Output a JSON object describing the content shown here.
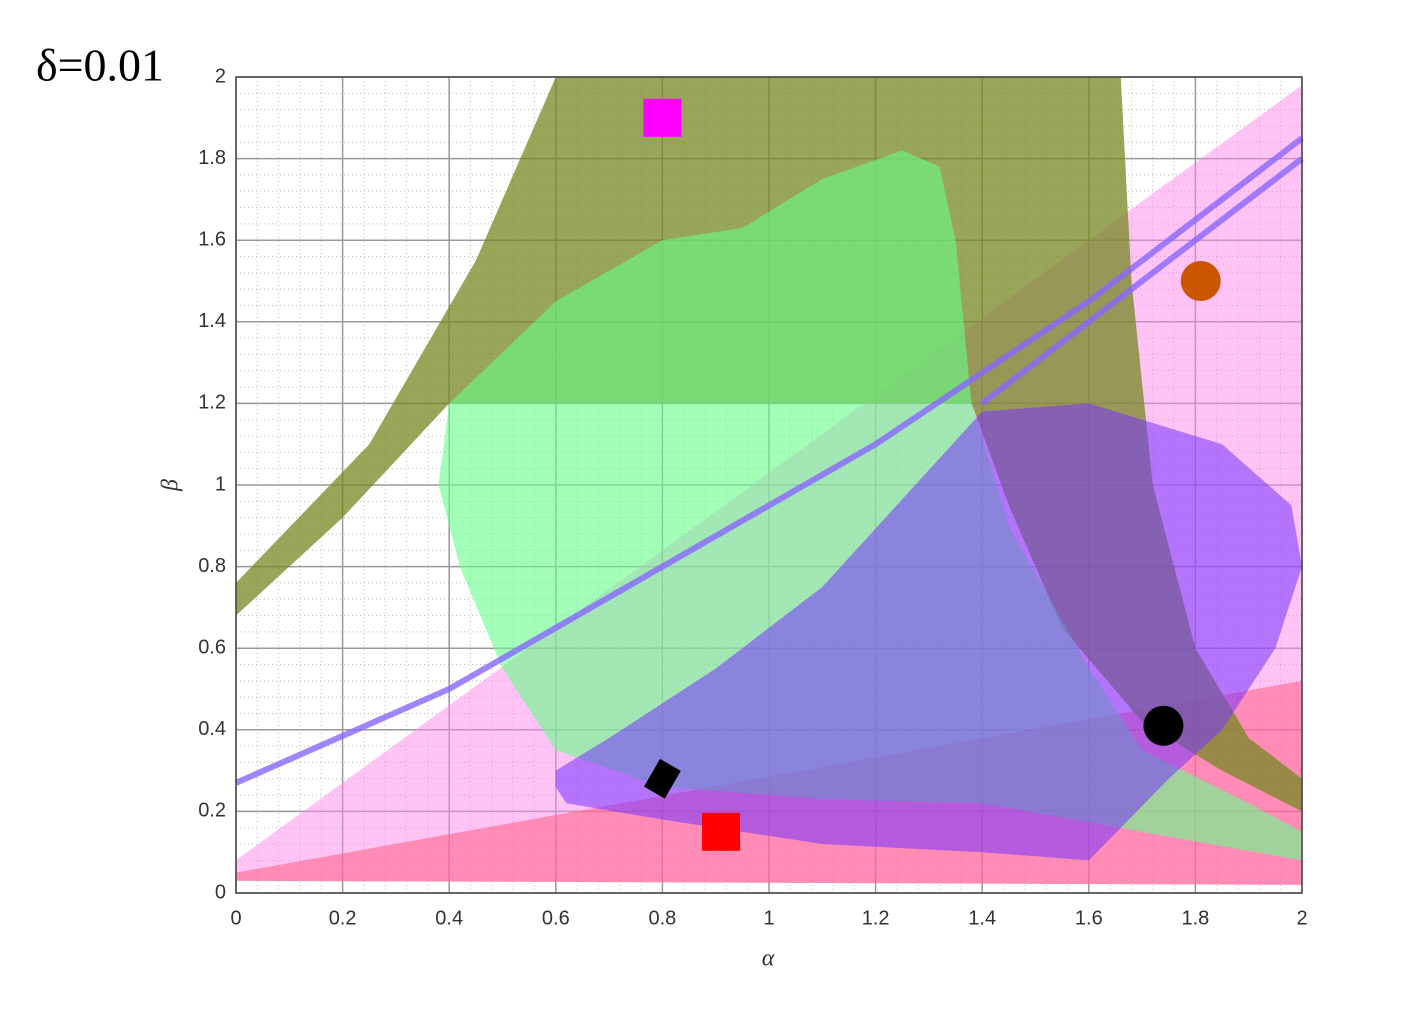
{
  "chart_data": {
    "type": "region",
    "title": "δ=0.01",
    "xlabel": "α",
    "ylabel": "β",
    "xlim": [
      0,
      2
    ],
    "ylim": [
      0,
      2
    ],
    "xticks": [
      0,
      0.2,
      0.4,
      0.6,
      0.8,
      1,
      1.2,
      1.4,
      1.6,
      1.8,
      2
    ],
    "yticks": [
      0,
      0.2,
      0.4,
      0.6,
      0.8,
      1,
      1.2,
      1.4,
      1.6,
      1.8,
      2
    ],
    "grid": true,
    "regions": [
      {
        "color": "#ff88ee",
        "opacity": 0.5,
        "x": [
          0,
          0,
          2,
          2
        ],
        "values": [
          0.03,
          0.08,
          1.98,
          0.02
        ]
      },
      {
        "color": "#ff5577",
        "opacity": 0.5,
        "x": [
          0,
          0,
          2,
          2
        ],
        "values": [
          0.03,
          0.05,
          0.52,
          0.02
        ]
      },
      {
        "color": "#778822",
        "opacity": 0.75,
        "x": [
          0,
          0,
          0.25,
          0.45,
          0.6,
          1.66,
          1.68,
          1.72,
          1.8,
          1.9,
          2,
          2,
          1.85,
          1.7,
          1.55,
          1.45,
          1.38,
          0.4,
          0.2
        ],
        "values": [
          0.68,
          0.76,
          1.1,
          1.55,
          2,
          2,
          1.5,
          1.0,
          0.6,
          0.38,
          0.28,
          0.2,
          0.3,
          0.42,
          0.65,
          0.95,
          1.2,
          1.2,
          0.92
        ]
      },
      {
        "color": "#66ff88",
        "opacity": 0.6,
        "x": [
          0.38,
          0.4,
          0.6,
          0.8,
          0.95,
          1.1,
          1.25,
          1.32,
          1.35,
          1.38,
          1.45,
          1.6,
          1.7,
          1.9,
          2,
          2,
          1.7,
          1.4,
          1.1,
          0.8,
          0.6,
          0.5,
          0.42
        ],
        "values": [
          1.0,
          1.2,
          1.45,
          1.6,
          1.63,
          1.75,
          1.82,
          1.78,
          1.6,
          1.2,
          0.9,
          0.55,
          0.35,
          0.22,
          0.15,
          0.08,
          0.15,
          0.22,
          0.23,
          0.26,
          0.35,
          0.55,
          0.8
        ]
      },
      {
        "color": "#7733ff",
        "opacity": 0.55,
        "x": [
          0.6,
          0.7,
          0.9,
          1.1,
          1.4,
          1.6,
          1.85,
          1.98,
          2,
          1.95,
          1.85,
          1.75,
          1.6,
          1.4,
          1.1,
          0.8,
          0.62,
          0.6
        ],
        "values": [
          0.3,
          0.38,
          0.55,
          0.75,
          1.18,
          1.2,
          1.1,
          0.95,
          0.8,
          0.6,
          0.4,
          0.28,
          0.08,
          0.1,
          0.12,
          0.18,
          0.22,
          0.26
        ]
      }
    ],
    "lines": [
      {
        "color": "#8866ff",
        "x": [
          0,
          0.4,
          0.8,
          1.2,
          1.6,
          2
        ],
        "values": [
          0.27,
          0.5,
          0.8,
          1.1,
          1.45,
          1.85
        ]
      },
      {
        "color": "#8866ff",
        "x": [
          1.4,
          1.7,
          2
        ],
        "values": [
          1.2,
          1.5,
          1.8
        ]
      }
    ],
    "markers": [
      {
        "marker": "square",
        "color": "#ff00ff",
        "x": [
          0.8
        ],
        "values": [
          1.9
        ]
      },
      {
        "marker": "circle",
        "color": "#cc5500",
        "x": [
          1.81
        ],
        "values": [
          1.5
        ]
      },
      {
        "marker": "circle",
        "color": "#000000",
        "x": [
          1.74
        ],
        "values": [
          0.41
        ]
      },
      {
        "marker": "diamond",
        "color": "#000000",
        "x": [
          0.8
        ],
        "values": [
          0.28
        ]
      },
      {
        "marker": "square",
        "color": "#ff0000",
        "x": [
          0.91
        ],
        "values": [
          0.15
        ]
      }
    ]
  }
}
